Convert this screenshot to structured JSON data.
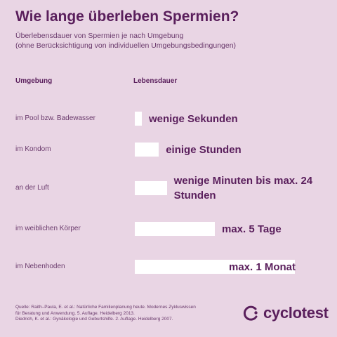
{
  "header": {
    "title": "Wie lange überleben Spermien?",
    "subtitle_lines": [
      "Überlebensdauer von Spermien  je nach Umgebung",
      "(ohne Berücksichtigung von individuellen Umgebungsbedingungen)"
    ]
  },
  "columns": {
    "environment": "Umgebung",
    "lifespan": "Lebensdauer"
  },
  "chart_data": {
    "type": "bar",
    "orientation": "horizontal",
    "categories": [
      "im Pool bzw. Badewasser",
      "im Kondom",
      "an der Luft",
      "im weiblichen Körper",
      "im Nebenhoden"
    ],
    "values": [
      0.04,
      0.15,
      0.2,
      0.5,
      1.0
    ],
    "value_labels": [
      [
        "wenige Sekunden"
      ],
      [
        "einige Stunden"
      ],
      [
        "wenige Minuten bis max. 24",
        "Stunden"
      ],
      [
        "max. 5 Tage"
      ],
      [
        "max. 1 Monat"
      ]
    ],
    "title": "Wie lange überleben Spermien?",
    "xlabel": "Lebensdauer",
    "ylabel": "Umgebung",
    "bar_color": "#ffffff"
  },
  "footer": {
    "lines": [
      "Quelle: Raith–Paula, E. et al.: Natürliche Familienplanung heute. Modernes Zykluswissen",
      "für Beratung und Anwendung. 5. Auflage. Heidelberg 2013.",
      "Diedrich, K. et al.: Gynäkologie und Geburtshilfe. 2. Auflage. Heidelberg 2007."
    ]
  },
  "brand": {
    "name": "cyclotest",
    "logo_icon": "cyclotest-logo-icon",
    "color": "#5a1f5c"
  },
  "colors": {
    "background": "#e9d5e4",
    "text": "#5a1f5c"
  }
}
